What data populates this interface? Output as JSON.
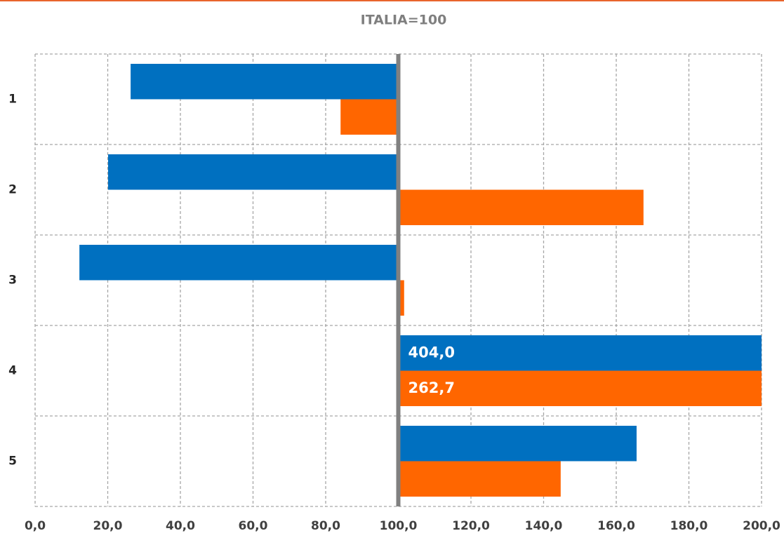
{
  "chart_data": {
    "type": "bar",
    "orientation": "horizontal",
    "title": "ITALIA=100",
    "categories": [
      "1",
      "2",
      "3",
      "4",
      "5"
    ],
    "base": 100,
    "series": [
      {
        "color": "#0070c0",
        "values": [
          26.3,
          20.1,
          12.2,
          404.0,
          165.6
        ],
        "value_labels": [
          null,
          null,
          null,
          "404,0",
          null
        ]
      },
      {
        "color": "#ff6600",
        "values": [
          84.1,
          167.5,
          101.6,
          262.7,
          144.7
        ],
        "value_labels": [
          null,
          null,
          null,
          "262,7",
          null
        ]
      }
    ],
    "xlim": [
      0,
      200
    ],
    "xticks": [
      {
        "value": 0,
        "label": "0,0"
      },
      {
        "value": 20,
        "label": "20,0"
      },
      {
        "value": 40,
        "label": "40,0"
      },
      {
        "value": 60,
        "label": "60,0"
      },
      {
        "value": 80,
        "label": "80,0"
      },
      {
        "value": 100,
        "label": "100,0"
      },
      {
        "value": 120,
        "label": "120,0"
      },
      {
        "value": 140,
        "label": "140,0"
      },
      {
        "value": 160,
        "label": "160,0"
      },
      {
        "value": 180,
        "label": "180,0"
      },
      {
        "value": 200,
        "label": "200,0"
      }
    ],
    "grid": true
  }
}
